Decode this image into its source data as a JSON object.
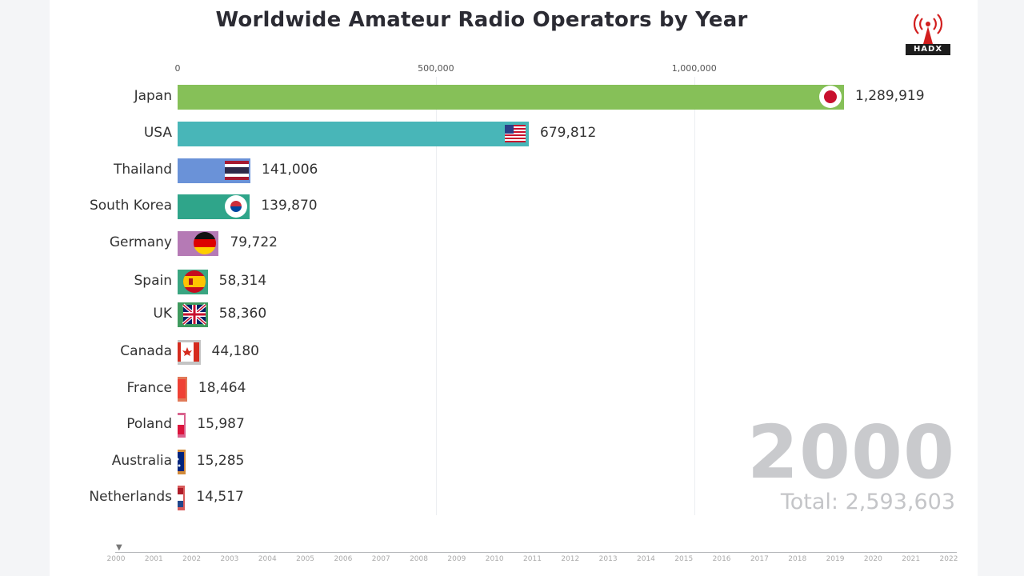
{
  "chart_data": {
    "type": "bar",
    "orientation": "horizontal",
    "title": "Worldwide Amateur Radio Operators by Year",
    "xlim": [
      0,
      1289919
    ],
    "x_ticks": [
      0,
      500000,
      1000000
    ],
    "x_tick_labels": [
      "0",
      "500,000",
      "1,000,000"
    ],
    "categories": [
      "Japan",
      "USA",
      "Thailand",
      "South Korea",
      "Germany",
      "Spain",
      "UK",
      "Canada",
      "France",
      "Poland",
      "Australia",
      "Netherlands"
    ],
    "values": [
      1289919,
      679812,
      141006,
      139870,
      79722,
      58314,
      58360,
      44180,
      18464,
      15987,
      15285,
      14517
    ],
    "value_labels": [
      "1,289,919",
      "679,812",
      "141,006",
      "139,870",
      "79,722",
      "58,314",
      "58,360",
      "44,180",
      "18,464",
      "15,987",
      "15,285",
      "14,517"
    ],
    "colors": [
      "#86c058",
      "#48b6b8",
      "#6a92d8",
      "#2fa58a",
      "#b57ab5",
      "#3aa581",
      "#3f9a5e",
      "#c4c4c4",
      "#e07a58",
      "#d9628d",
      "#d28a3a",
      "#d85a5a"
    ],
    "flags": [
      "japan-flag",
      "usa-flag",
      "thailand-flag",
      "south-korea-flag",
      "germany-flag",
      "spain-flag",
      "uk-flag",
      "canada-flag",
      "france-flag",
      "poland-flag",
      "australia-flag",
      "netherlands-flag"
    ],
    "year": "2000",
    "total_label": "Total: 2,593,603",
    "timeline_years": [
      "2000",
      "2001",
      "2002",
      "2003",
      "2004",
      "2005",
      "2006",
      "2007",
      "2008",
      "2009",
      "2010",
      "2011",
      "2012",
      "2013",
      "2014",
      "2015",
      "2016",
      "2017",
      "2018",
      "2019",
      "2020",
      "2021",
      "2022"
    ],
    "logo_text": "HADX"
  }
}
